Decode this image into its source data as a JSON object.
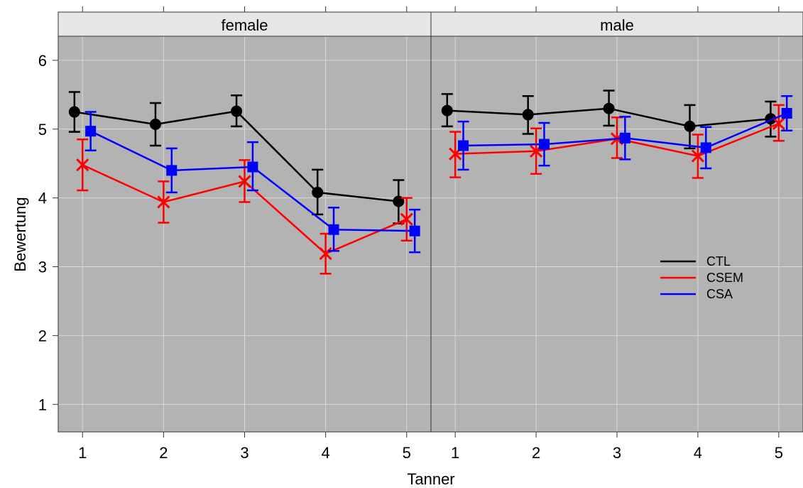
{
  "chart_data": {
    "type": "line",
    "xlabel": "Tanner",
    "ylabel": "Bewertung",
    "x": [
      1,
      2,
      3,
      4,
      5
    ],
    "xlim": [
      0.7,
      5.3
    ],
    "ylim": [
      0.6,
      6.35
    ],
    "yticks": [
      1,
      2,
      3,
      4,
      5,
      6
    ],
    "grid": true,
    "legend_position": "right-middle of male panel",
    "legend": [
      "CTL",
      "CSEM",
      "CSA"
    ],
    "series_styles": [
      {
        "name": "CTL",
        "color": "#000000",
        "marker": "circle",
        "offset": -0.1
      },
      {
        "name": "CSEM",
        "color": "#ff0000",
        "marker": "x",
        "offset": 0.0
      },
      {
        "name": "CSA",
        "color": "#0000ff",
        "marker": "square",
        "offset": 0.1
      }
    ],
    "panels": [
      {
        "strip": "female",
        "series": [
          {
            "name": "CTL",
            "values": [
              5.25,
              5.07,
              5.26,
              4.08,
              3.95
            ],
            "lower": [
              4.96,
              4.76,
              5.04,
              3.76,
              3.63
            ],
            "upper": [
              5.54,
              5.38,
              5.49,
              4.41,
              4.26
            ]
          },
          {
            "name": "CSEM",
            "values": [
              4.48,
              3.94,
              4.24,
              3.19,
              3.69
            ],
            "lower": [
              4.11,
              3.64,
              3.94,
              2.9,
              3.38
            ],
            "upper": [
              4.85,
              4.24,
              4.55,
              3.48,
              4.0
            ]
          },
          {
            "name": "CSA",
            "values": [
              4.97,
              4.4,
              4.45,
              3.54,
              3.52
            ],
            "lower": [
              4.69,
              4.08,
              4.11,
              3.23,
              3.21
            ],
            "upper": [
              5.25,
              4.72,
              4.81,
              3.86,
              3.83
            ]
          }
        ]
      },
      {
        "strip": "male",
        "series": [
          {
            "name": "CTL",
            "values": [
              5.27,
              5.21,
              5.3,
              5.04,
              5.15
            ],
            "lower": [
              5.04,
              4.93,
              5.05,
              4.72,
              4.89
            ],
            "upper": [
              5.51,
              5.48,
              5.56,
              5.35,
              5.4
            ]
          },
          {
            "name": "CSEM",
            "values": [
              4.64,
              4.68,
              4.86,
              4.61,
              5.08
            ],
            "lower": [
              4.3,
              4.35,
              4.58,
              4.29,
              4.83
            ],
            "upper": [
              4.96,
              5.01,
              5.17,
              4.92,
              5.35
            ]
          },
          {
            "name": "CSA",
            "values": [
              4.76,
              4.78,
              4.87,
              4.73,
              5.23
            ],
            "lower": [
              4.41,
              4.47,
              4.56,
              4.43,
              4.98
            ],
            "upper": [
              5.11,
              5.09,
              5.18,
              5.03,
              5.48
            ]
          }
        ]
      }
    ]
  }
}
